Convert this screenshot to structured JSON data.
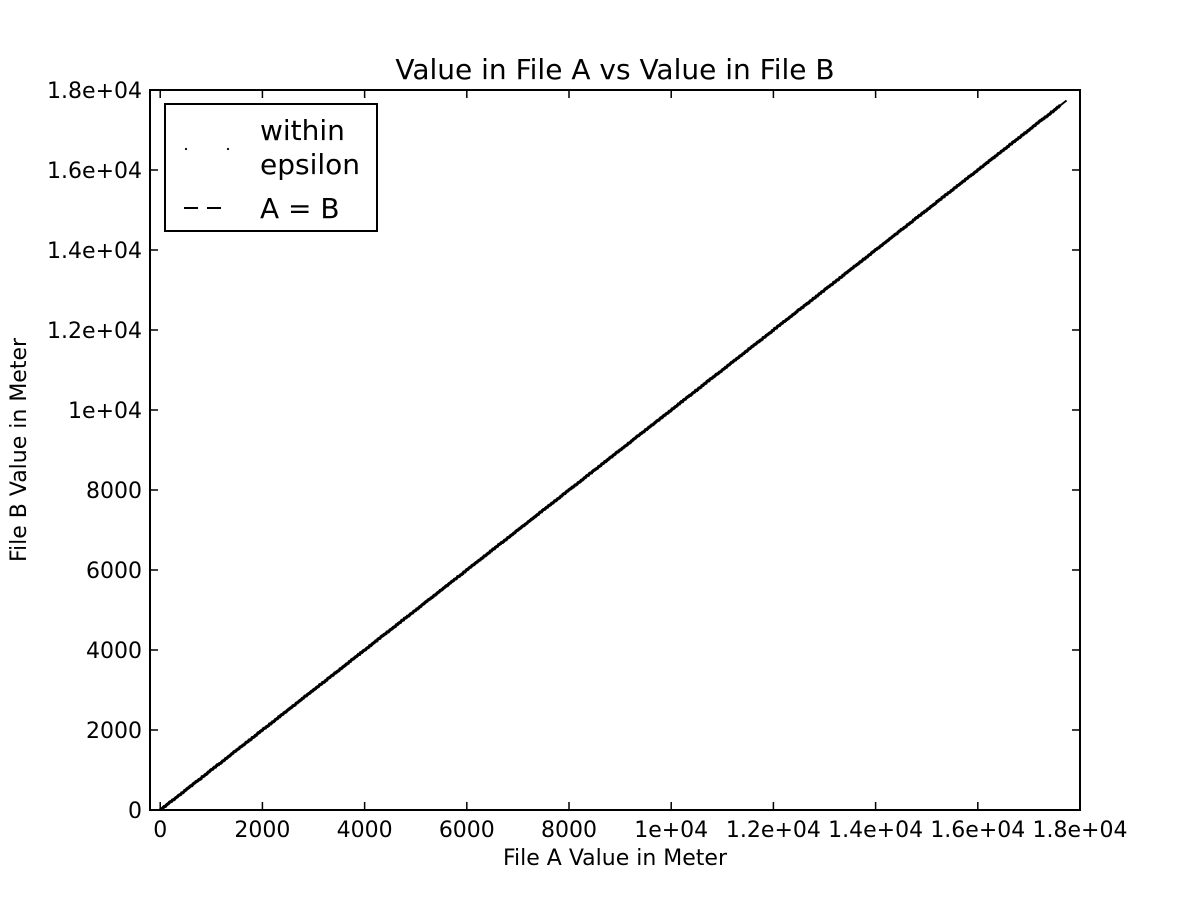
{
  "chart_data": {
    "type": "scatter",
    "title": "Value in File A vs Value in File B",
    "xlabel": "File A Value in Meter",
    "ylabel": "File B Value in Meter",
    "xlim": [
      -200,
      18000
    ],
    "ylim": [
      0,
      18000
    ],
    "x_ticks": [
      0,
      2000,
      4000,
      6000,
      8000,
      10000,
      12000,
      14000,
      16000,
      18000
    ],
    "x_tick_labels": [
      "0",
      "2000",
      "4000",
      "6000",
      "8000",
      "1e+04",
      "1.2e+04",
      "1.4e+04",
      "1.6e+04",
      "1.8e+04"
    ],
    "y_ticks": [
      0,
      2000,
      4000,
      6000,
      8000,
      10000,
      12000,
      14000,
      16000,
      18000
    ],
    "y_tick_labels": [
      "0",
      "2000",
      "4000",
      "6000",
      "8000",
      "1e+04",
      "1.2e+04",
      "1.4e+04",
      "1.6e+04",
      "1.8e+04"
    ],
    "grid": false,
    "legend_position": "top-left",
    "legend": {
      "within_epsilon_line1": "within",
      "within_epsilon_line2": "epsilon",
      "identity_line": "A = B"
    },
    "series": [
      {
        "name": "within epsilon",
        "kind": "points",
        "color": "#000000",
        "x_range": [
          -200,
          17600
        ],
        "y_range": [
          -200,
          17600
        ],
        "relation": "y = x"
      },
      {
        "name": "A = B",
        "kind": "dashed-line",
        "color": "#000000",
        "x": [
          -200,
          17800
        ],
        "y": [
          -200,
          17800
        ]
      }
    ]
  }
}
